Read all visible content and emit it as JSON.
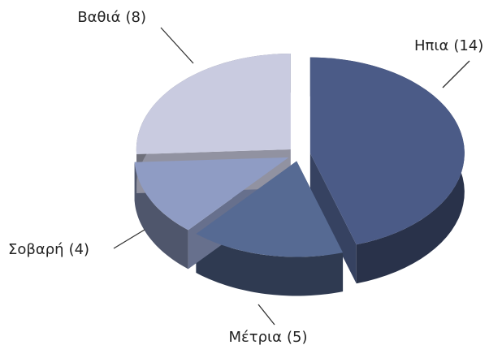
{
  "chart_data": {
    "type": "pie",
    "categories": [
      "Ηπια",
      "Μέτρια",
      "Σοβαρή",
      "Βαθιά"
    ],
    "values": [
      14,
      5,
      4,
      8
    ],
    "value_labels": [
      "(14)",
      "(5)",
      "(4)",
      "(8)"
    ],
    "colors": [
      "#4b5b87",
      "#566a93",
      "#8f9cc4",
      "#c9cbe0"
    ]
  }
}
